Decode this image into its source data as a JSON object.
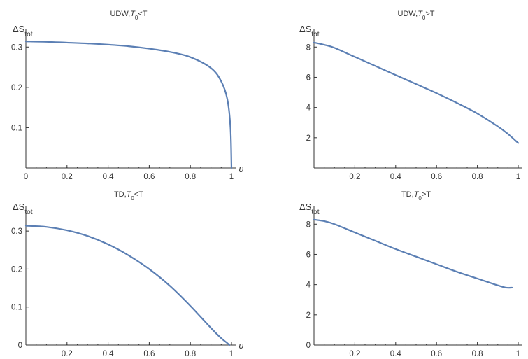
{
  "chart_data": [
    {
      "type": "line",
      "title": "UDW,T0<T",
      "title_parts": [
        "UDW,",
        "T",
        "0",
        "<T"
      ],
      "ylabel_parts": [
        "ΔS",
        "tot"
      ],
      "xlabel": "υ",
      "xlim": [
        0,
        1
      ],
      "ylim": [
        0,
        0.33
      ],
      "xticks": [
        0,
        0.2,
        0.4,
        0.6,
        0.8,
        1
      ],
      "xtick_labels": [
        "0",
        "0.2",
        "0.4",
        "0.6",
        "0.8",
        "1"
      ],
      "yticks": [
        0.1,
        0.2,
        0.3
      ],
      "ytick_labels": [
        "0.1",
        "0.2",
        "0.3"
      ],
      "color": "#5b7fb4",
      "series": [
        {
          "x": [
            0,
            0.1,
            0.2,
            0.3,
            0.4,
            0.5,
            0.6,
            0.7,
            0.8,
            0.9,
            0.95,
            0.98,
            0.995,
            1.0
          ],
          "y": [
            0.314,
            0.313,
            0.311,
            0.309,
            0.306,
            0.302,
            0.296,
            0.288,
            0.275,
            0.248,
            0.215,
            0.17,
            0.1,
            0.0
          ]
        }
      ]
    },
    {
      "type": "line",
      "title": "UDW,T0>T",
      "title_parts": [
        "UDW,",
        "T",
        "0",
        ">T"
      ],
      "ylabel_parts": [
        "ΔS",
        "tot"
      ],
      "xlabel": "",
      "xlim": [
        0,
        1
      ],
      "ylim": [
        0,
        8.8
      ],
      "xticks": [
        0.2,
        0.4,
        0.6,
        0.8,
        1
      ],
      "xtick_labels": [
        "0.2",
        "0.4",
        "0.6",
        "0.8",
        "1"
      ],
      "yticks": [
        2,
        4,
        6,
        8
      ],
      "ytick_labels": [
        "2",
        "4",
        "6",
        "8"
      ],
      "color": "#5b7fb4",
      "series": [
        {
          "x": [
            0.0,
            0.05,
            0.1,
            0.2,
            0.3,
            0.4,
            0.5,
            0.6,
            0.7,
            0.8,
            0.9,
            0.95,
            1.0
          ],
          "y": [
            8.3,
            8.15,
            7.95,
            7.35,
            6.75,
            6.15,
            5.55,
            4.95,
            4.3,
            3.6,
            2.75,
            2.25,
            1.65
          ]
        }
      ]
    },
    {
      "type": "line",
      "title": "TD,T0<T",
      "title_parts": [
        "TD,",
        "T",
        "0",
        "<T"
      ],
      "ylabel_parts": [
        "ΔS",
        "tot"
      ],
      "xlabel": "υ",
      "xlim": [
        0,
        1
      ],
      "ylim": [
        0,
        0.35
      ],
      "xticks": [
        0.2,
        0.4,
        0.6,
        0.8,
        1
      ],
      "xtick_labels": [
        "0.2",
        "0.4",
        "0.6",
        "0.8",
        "1"
      ],
      "yticks": [
        0,
        0.1,
        0.2,
        0.3
      ],
      "ytick_labels": [
        "0",
        "0.1",
        "0.2",
        "0.3"
      ],
      "color": "#5b7fb4",
      "series": [
        {
          "x": [
            0.0,
            0.1,
            0.2,
            0.3,
            0.4,
            0.5,
            0.6,
            0.7,
            0.8,
            0.9,
            0.95,
            0.98,
            0.99
          ],
          "y": [
            0.314,
            0.311,
            0.302,
            0.287,
            0.265,
            0.236,
            0.2,
            0.156,
            0.103,
            0.045,
            0.018,
            0.005,
            0.0
          ]
        }
      ]
    },
    {
      "type": "line",
      "title": "TD,T0>T",
      "title_parts": [
        "TD,",
        "T",
        "0",
        ">T"
      ],
      "ylabel_parts": [
        "ΔS",
        "tot"
      ],
      "xlabel": "",
      "xlim": [
        0,
        1
      ],
      "ylim": [
        0,
        8.8
      ],
      "xticks": [
        0.2,
        0.4,
        0.6,
        0.8,
        1
      ],
      "xtick_labels": [
        "0.2",
        "0.4",
        "0.6",
        "0.8",
        "1"
      ],
      "yticks": [
        0,
        2,
        4,
        6,
        8
      ],
      "ytick_labels": [
        "0",
        "2",
        "4",
        "6",
        "8"
      ],
      "color": "#5b7fb4",
      "series": [
        {
          "x": [
            0.0,
            0.05,
            0.1,
            0.2,
            0.3,
            0.4,
            0.5,
            0.6,
            0.7,
            0.8,
            0.9,
            0.94,
            0.97
          ],
          "y": [
            8.3,
            8.2,
            8.0,
            7.45,
            6.9,
            6.35,
            5.85,
            5.35,
            4.85,
            4.4,
            3.95,
            3.8,
            3.8
          ]
        }
      ]
    }
  ]
}
